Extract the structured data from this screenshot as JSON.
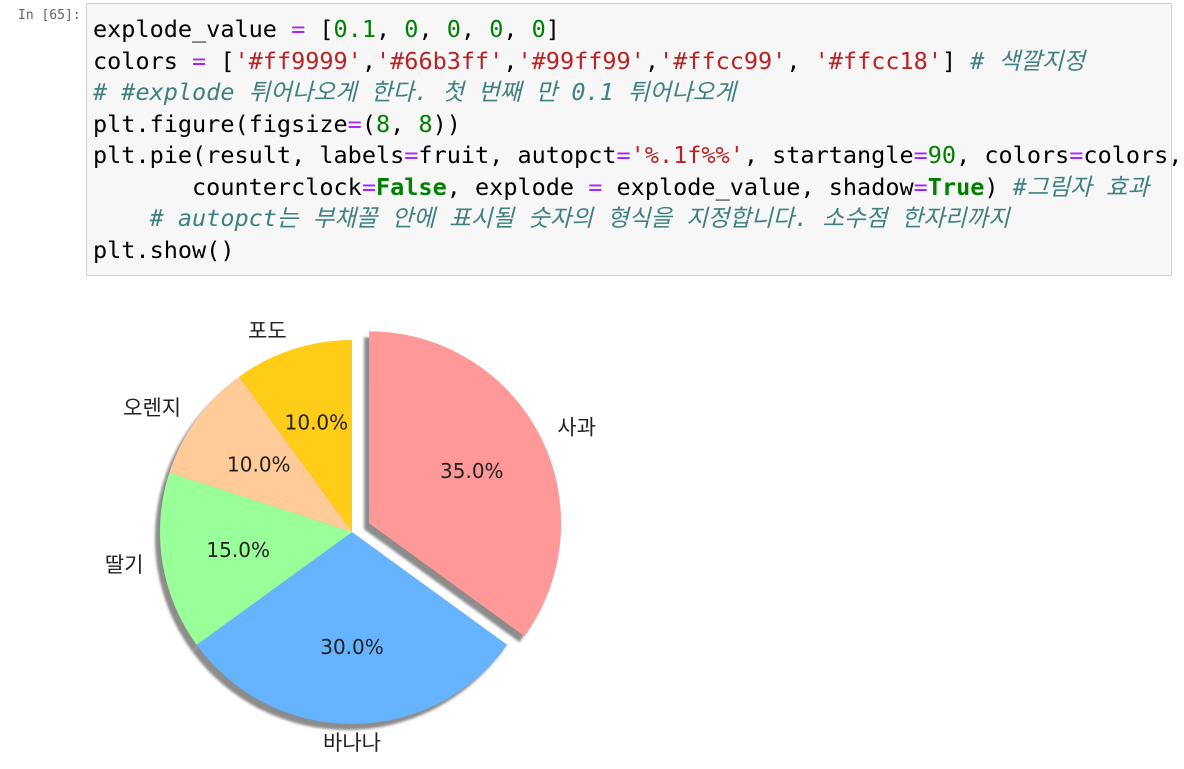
{
  "cell": {
    "prompt": "In [65]:",
    "lines": [
      [
        {
          "t": "txt",
          "v": "explode_value "
        },
        {
          "t": "op",
          "v": "="
        },
        {
          "t": "txt",
          "v": " ["
        },
        {
          "t": "num",
          "v": "0.1"
        },
        {
          "t": "txt",
          "v": ", "
        },
        {
          "t": "num",
          "v": "0"
        },
        {
          "t": "txt",
          "v": ", "
        },
        {
          "t": "num",
          "v": "0"
        },
        {
          "t": "txt",
          "v": ", "
        },
        {
          "t": "num",
          "v": "0"
        },
        {
          "t": "txt",
          "v": ", "
        },
        {
          "t": "num",
          "v": "0"
        },
        {
          "t": "txt",
          "v": "]"
        }
      ],
      [
        {
          "t": "txt",
          "v": "colors "
        },
        {
          "t": "op",
          "v": "="
        },
        {
          "t": "txt",
          "v": " ["
        },
        {
          "t": "str",
          "v": "'#ff9999'"
        },
        {
          "t": "txt",
          "v": ","
        },
        {
          "t": "str",
          "v": "'#66b3ff'"
        },
        {
          "t": "txt",
          "v": ","
        },
        {
          "t": "str",
          "v": "'#99ff99'"
        },
        {
          "t": "txt",
          "v": ","
        },
        {
          "t": "str",
          "v": "'#ffcc99'"
        },
        {
          "t": "txt",
          "v": ", "
        },
        {
          "t": "str",
          "v": "'#ffcc18'"
        },
        {
          "t": "txt",
          "v": "] "
        },
        {
          "t": "cm",
          "v": "# 색깔지정"
        }
      ],
      [
        {
          "t": "cm",
          "v": "# #explode 튀어나오게 한다. 첫 번째 만 0.1 튀어나오게"
        }
      ],
      [
        {
          "t": "txt",
          "v": "plt.figure(figsize"
        },
        {
          "t": "op",
          "v": "="
        },
        {
          "t": "txt",
          "v": "("
        },
        {
          "t": "num",
          "v": "8"
        },
        {
          "t": "txt",
          "v": ", "
        },
        {
          "t": "num",
          "v": "8"
        },
        {
          "t": "txt",
          "v": "))"
        }
      ],
      [
        {
          "t": "txt",
          "v": "plt.pie(result, labels"
        },
        {
          "t": "op",
          "v": "="
        },
        {
          "t": "txt",
          "v": "fruit, autopct"
        },
        {
          "t": "op",
          "v": "="
        },
        {
          "t": "str",
          "v": "'%.1f%%'"
        },
        {
          "t": "txt",
          "v": ", startangle"
        },
        {
          "t": "op",
          "v": "="
        },
        {
          "t": "num",
          "v": "90"
        },
        {
          "t": "txt",
          "v": ", colors"
        },
        {
          "t": "op",
          "v": "="
        },
        {
          "t": "txt",
          "v": "colors,"
        }
      ],
      [
        {
          "t": "txt",
          "v": "       counterclock"
        },
        {
          "t": "op",
          "v": "="
        },
        {
          "t": "kw",
          "v": "False"
        },
        {
          "t": "txt",
          "v": ", explode "
        },
        {
          "t": "op",
          "v": "="
        },
        {
          "t": "txt",
          "v": " explode_value, shadow"
        },
        {
          "t": "op",
          "v": "="
        },
        {
          "t": "kw",
          "v": "True"
        },
        {
          "t": "txt",
          "v": ") "
        },
        {
          "t": "cm",
          "v": "#그림자 효과"
        }
      ],
      [
        {
          "t": "txt",
          "v": "    "
        },
        {
          "t": "cm",
          "v": "# autopct는 부채꼴 안에 표시될 숫자의 형식을 지정합니다. 소수점 한자리까지"
        }
      ],
      [
        {
          "t": "txt",
          "v": "plt.show()"
        }
      ]
    ]
  },
  "chart_data": {
    "type": "pie",
    "categories": [
      "사과",
      "바나나",
      "딸기",
      "오렌지",
      "포도"
    ],
    "values": [
      35.0,
      30.0,
      15.0,
      10.0,
      10.0
    ],
    "pct_labels": [
      "35.0%",
      "30.0%",
      "15.0%",
      "10.0%",
      "10.0%"
    ],
    "colors": [
      "#ff9999",
      "#66b3ff",
      "#99ff99",
      "#ffcc99",
      "#ffcc18"
    ],
    "explode": [
      0.1,
      0,
      0,
      0,
      0
    ],
    "startangle": 90,
    "counterclock": false,
    "shadow": true
  }
}
